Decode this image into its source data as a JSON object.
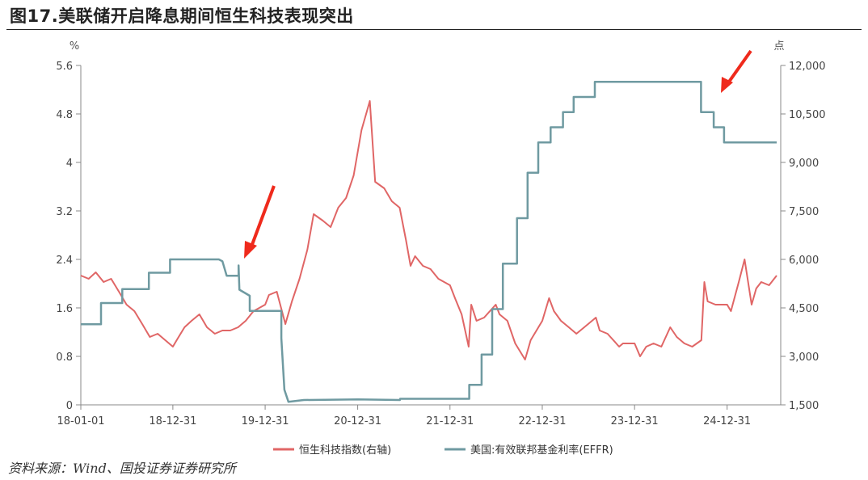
{
  "figure": {
    "title": "图17.美联储开启降息期间恒生科技表现突出",
    "source": "资料来源：Wind、国投证券证券研究所"
  },
  "colors": {
    "hstech": "#e06666",
    "effr": "#6f9aa1",
    "axis": "#666666",
    "arrow": "#ef2a1c"
  },
  "chart_data": {
    "type": "line",
    "x_tick_labels": [
      "18-01-01",
      "18-12-31",
      "19-12-31",
      "20-12-31",
      "21-12-31",
      "22-12-31",
      "23-12-31",
      "24-12-31"
    ],
    "left_axis": {
      "unit": "%",
      "ylim": [
        0,
        5.6
      ],
      "tick_labels": [
        "0",
        "0.8",
        "1.6",
        "2.4",
        "3.2",
        "4",
        "4.8",
        "5.6"
      ]
    },
    "right_axis": {
      "unit": "点",
      "ylim": [
        1500,
        12000
      ],
      "tick_labels": [
        "1,500",
        "3,000",
        "4,500",
        "6,000",
        "7,500",
        "9,000",
        "10,500",
        "12,000"
      ]
    },
    "legend": [
      "恒生科技指数(右轴)",
      "美国:有效联邦基金利率(EFFR)"
    ],
    "legend_position": "bottom",
    "grid": false,
    "annotations": [
      "arrow near 19-08 (Fed cut)",
      "arrow near 24-09 (Fed cut)"
    ],
    "series": [
      {
        "name": "恒生科技指数(右轴)",
        "axis": "right",
        "points": [
          [
            "2018-01-01",
            5500
          ],
          [
            "2018-02-01",
            5400
          ],
          [
            "2018-03-01",
            5600
          ],
          [
            "2018-04-01",
            5300
          ],
          [
            "2018-05-01",
            5400
          ],
          [
            "2018-06-01",
            5000
          ],
          [
            "2018-07-01",
            4600
          ],
          [
            "2018-08-01",
            4400
          ],
          [
            "2018-09-01",
            4000
          ],
          [
            "2018-10-01",
            3600
          ],
          [
            "2018-11-01",
            3700
          ],
          [
            "2018-12-31",
            3300
          ],
          [
            "2019-01-15",
            3500
          ],
          [
            "2019-02-15",
            3900
          ],
          [
            "2019-03-15",
            4100
          ],
          [
            "2019-04-15",
            4300
          ],
          [
            "2019-05-15",
            3900
          ],
          [
            "2019-06-15",
            3700
          ],
          [
            "2019-07-15",
            3800
          ],
          [
            "2019-08-15",
            3800
          ],
          [
            "2019-09-15",
            3900
          ],
          [
            "2019-10-15",
            4100
          ],
          [
            "2019-11-15",
            4400
          ],
          [
            "2019-12-31",
            4600
          ],
          [
            "2020-01-15",
            4900
          ],
          [
            "2020-02-15",
            5000
          ],
          [
            "2020-03-20",
            4000
          ],
          [
            "2020-04-15",
            4700
          ],
          [
            "2020-05-15",
            5400
          ],
          [
            "2020-06-15",
            6300
          ],
          [
            "2020-07-10",
            7400
          ],
          [
            "2020-08-15",
            7200
          ],
          [
            "2020-09-15",
            7000
          ],
          [
            "2020-10-15",
            7600
          ],
          [
            "2020-11-15",
            7900
          ],
          [
            "2020-12-15",
            8600
          ],
          [
            "2021-01-15",
            10000
          ],
          [
            "2021-02-17",
            10900
          ],
          [
            "2021-03-10",
            8400
          ],
          [
            "2021-04-15",
            8200
          ],
          [
            "2021-05-15",
            7800
          ],
          [
            "2021-06-15",
            7600
          ],
          [
            "2021-07-10",
            6600
          ],
          [
            "2021-07-28",
            5800
          ],
          [
            "2021-08-15",
            6100
          ],
          [
            "2021-09-15",
            5800
          ],
          [
            "2021-10-15",
            5700
          ],
          [
            "2021-11-15",
            5400
          ],
          [
            "2021-12-31",
            5200
          ],
          [
            "2022-01-20",
            4800
          ],
          [
            "2022-02-15",
            4300
          ],
          [
            "2022-03-15",
            3300
          ],
          [
            "2022-03-25",
            4600
          ],
          [
            "2022-04-15",
            4100
          ],
          [
            "2022-05-15",
            4200
          ],
          [
            "2022-06-30",
            4600
          ],
          [
            "2022-07-15",
            4300
          ],
          [
            "2022-08-15",
            4100
          ],
          [
            "2022-09-15",
            3400
          ],
          [
            "2022-10-24",
            2900
          ],
          [
            "2022-11-15",
            3500
          ],
          [
            "2022-12-31",
            4100
          ],
          [
            "2023-01-27",
            4800
          ],
          [
            "2023-02-15",
            4400
          ],
          [
            "2023-03-15",
            4100
          ],
          [
            "2023-04-15",
            3900
          ],
          [
            "2023-05-15",
            3700
          ],
          [
            "2023-06-15",
            3900
          ],
          [
            "2023-07-31",
            4200
          ],
          [
            "2023-08-15",
            3800
          ],
          [
            "2023-09-15",
            3700
          ],
          [
            "2023-10-31",
            3300
          ],
          [
            "2023-11-15",
            3400
          ],
          [
            "2023-12-31",
            3400
          ],
          [
            "2024-01-22",
            3000
          ],
          [
            "2024-02-15",
            3300
          ],
          [
            "2024-03-15",
            3400
          ],
          [
            "2024-04-15",
            3300
          ],
          [
            "2024-05-20",
            3900
          ],
          [
            "2024-06-15",
            3600
          ],
          [
            "2024-07-15",
            3400
          ],
          [
            "2024-08-15",
            3300
          ],
          [
            "2024-09-20",
            3500
          ],
          [
            "2024-10-02",
            5300
          ],
          [
            "2024-10-15",
            4700
          ],
          [
            "2024-11-15",
            4600
          ],
          [
            "2024-12-31",
            4600
          ],
          [
            "2025-01-15",
            4400
          ],
          [
            "2025-02-15",
            5300
          ],
          [
            "2025-03-10",
            6000
          ],
          [
            "2025-04-07",
            4600
          ],
          [
            "2025-04-25",
            5100
          ],
          [
            "2025-05-15",
            5300
          ],
          [
            "2025-06-15",
            5200
          ],
          [
            "2025-07-15",
            5500
          ]
        ]
      },
      {
        "name": "美国:有效联邦基金利率(EFFR)",
        "axis": "left",
        "points": [
          [
            "2018-01-01",
            1.33
          ],
          [
            "2018-03-22",
            1.33
          ],
          [
            "2018-03-22",
            1.68
          ],
          [
            "2018-06-14",
            1.68
          ],
          [
            "2018-06-14",
            1.91
          ],
          [
            "2018-09-27",
            1.91
          ],
          [
            "2018-09-27",
            2.18
          ],
          [
            "2018-12-20",
            2.18
          ],
          [
            "2018-12-20",
            2.4
          ],
          [
            "2019-07-01",
            2.4
          ],
          [
            "2019-07-15",
            2.37
          ],
          [
            "2019-08-01",
            2.13
          ],
          [
            "2019-09-17",
            2.13
          ],
          [
            "2019-09-17",
            2.3
          ],
          [
            "2019-09-20",
            1.9
          ],
          [
            "2019-10-31",
            1.8
          ],
          [
            "2019-10-31",
            1.55
          ],
          [
            "2020-03-04",
            1.55
          ],
          [
            "2020-03-04",
            1.1
          ],
          [
            "2020-03-16",
            0.25
          ],
          [
            "2020-04-01",
            0.05
          ],
          [
            "2020-06-01",
            0.08
          ],
          [
            "2021-01-01",
            0.09
          ],
          [
            "2021-06-16",
            0.08
          ],
          [
            "2021-06-17",
            0.1
          ],
          [
            "2022-03-17",
            0.1
          ],
          [
            "2022-03-17",
            0.33
          ],
          [
            "2022-05-05",
            0.33
          ],
          [
            "2022-05-05",
            0.83
          ],
          [
            "2022-06-16",
            0.83
          ],
          [
            "2022-06-16",
            1.58
          ],
          [
            "2022-07-28",
            1.58
          ],
          [
            "2022-07-28",
            2.33
          ],
          [
            "2022-09-22",
            2.33
          ],
          [
            "2022-09-22",
            3.08
          ],
          [
            "2022-11-03",
            3.08
          ],
          [
            "2022-11-03",
            3.83
          ],
          [
            "2022-12-15",
            3.83
          ],
          [
            "2022-12-15",
            4.33
          ],
          [
            "2023-02-02",
            4.33
          ],
          [
            "2023-02-02",
            4.58
          ],
          [
            "2023-03-23",
            4.58
          ],
          [
            "2023-03-23",
            4.83
          ],
          [
            "2023-05-04",
            4.83
          ],
          [
            "2023-05-04",
            5.08
          ],
          [
            "2023-07-27",
            5.08
          ],
          [
            "2023-07-27",
            5.33
          ],
          [
            "2024-09-19",
            5.33
          ],
          [
            "2024-09-19",
            4.83
          ],
          [
            "2024-11-08",
            4.83
          ],
          [
            "2024-11-08",
            4.58
          ],
          [
            "2024-12-19",
            4.58
          ],
          [
            "2024-12-19",
            4.33
          ],
          [
            "2025-07-15",
            4.33
          ]
        ]
      }
    ]
  }
}
